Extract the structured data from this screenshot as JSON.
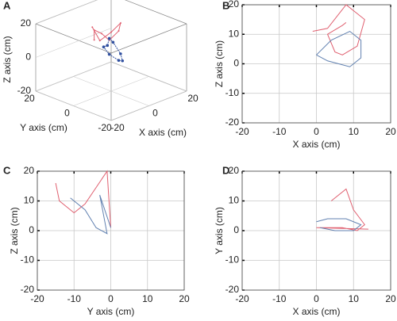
{
  "chart_data": [
    {
      "type": "line3d",
      "label": "A",
      "xlabel": "X axis (cm)",
      "ylabel": "Y axis (cm)",
      "zlabel": "Z axis (cm)",
      "xlim": [
        -20,
        20
      ],
      "ylim": [
        -20,
        20
      ],
      "zlim": [
        -20,
        20
      ],
      "xticks": [
        -20,
        0,
        20
      ],
      "yticks": [
        -20,
        0,
        20
      ],
      "zticks": [
        -20,
        0,
        20
      ],
      "series": [
        {
          "color": "#e06070",
          "marker": false,
          "x": [
            -5,
            -3,
            0,
            3,
            4,
            2,
            0,
            -3,
            -4
          ],
          "y": [
            5,
            3,
            0,
            -2,
            0,
            3,
            5,
            6,
            5
          ],
          "z": [
            18,
            10,
            15,
            20,
            14,
            8,
            12,
            15,
            10
          ]
        },
        {
          "color": "#3050a0",
          "marker": true,
          "x": [
            -2,
            1,
            4,
            5,
            3,
            0,
            -3,
            -4,
            -2
          ],
          "y": [
            0,
            2,
            3,
            0,
            -3,
            -4,
            -2,
            0,
            0
          ],
          "z": [
            8,
            10,
            6,
            0,
            -2,
            0,
            4,
            8,
            8
          ]
        }
      ]
    },
    {
      "type": "line",
      "label": "B",
      "xlabel": "X axis (cm)",
      "ylabel": "Z axis (cm)",
      "grid": true,
      "xlim": [
        -20,
        20
      ],
      "ylim": [
        -20,
        20
      ],
      "xticks": [
        -20,
        -10,
        0,
        10,
        20
      ],
      "yticks": [
        -20,
        -10,
        0,
        10,
        20
      ],
      "series": [
        {
          "color": "#e06070",
          "x": [
            -1,
            3,
            8,
            13,
            11,
            7,
            5,
            3,
            7,
            8
          ],
          "values": [
            11,
            12,
            20,
            15,
            6,
            3,
            4,
            10,
            13,
            14
          ]
        },
        {
          "color": "#6080b0",
          "x": [
            0,
            4,
            9,
            12,
            12,
            9,
            6,
            3,
            0
          ],
          "values": [
            3,
            8,
            11,
            8,
            2,
            -1,
            0,
            1,
            3
          ]
        }
      ]
    },
    {
      "type": "line",
      "label": "C",
      "xlabel": "Y axis (cm)",
      "ylabel": "Z axis (cm)",
      "grid": true,
      "xlim": [
        -20,
        20
      ],
      "ylim": [
        -20,
        20
      ],
      "xticks": [
        -20,
        -10,
        0,
        10,
        20
      ],
      "yticks": [
        -20,
        -10,
        0,
        10,
        20
      ],
      "series": [
        {
          "color": "#e06070",
          "x": [
            -15,
            -14,
            -10,
            -7,
            -1,
            0
          ],
          "values": [
            16,
            10,
            6,
            9,
            20,
            1
          ]
        },
        {
          "color": "#6080b0",
          "x": [
            -11,
            -7,
            -4,
            -1,
            -3,
            0
          ],
          "values": [
            11,
            7,
            1,
            -1,
            12,
            1
          ]
        }
      ]
    },
    {
      "type": "line",
      "label": "D",
      "xlabel": "X axis (cm)",
      "ylabel": "Y axis (cm)",
      "grid": true,
      "xlim": [
        -20,
        20
      ],
      "ylim": [
        -20,
        20
      ],
      "xticks": [
        -20,
        -10,
        0,
        10,
        20
      ],
      "yticks": [
        -20,
        -10,
        0,
        10,
        20
      ],
      "series": [
        {
          "color": "#e06070",
          "x": [
            4,
            8,
            10,
            13,
            11,
            7,
            3,
            0,
            14
          ],
          "values": [
            10,
            14,
            7,
            2,
            0,
            1,
            1,
            1,
            0.5
          ]
        },
        {
          "color": "#6080b0",
          "x": [
            0,
            3,
            8,
            12,
            10,
            5,
            1
          ],
          "values": [
            3,
            4,
            4,
            2,
            0,
            0,
            1
          ]
        }
      ]
    }
  ]
}
